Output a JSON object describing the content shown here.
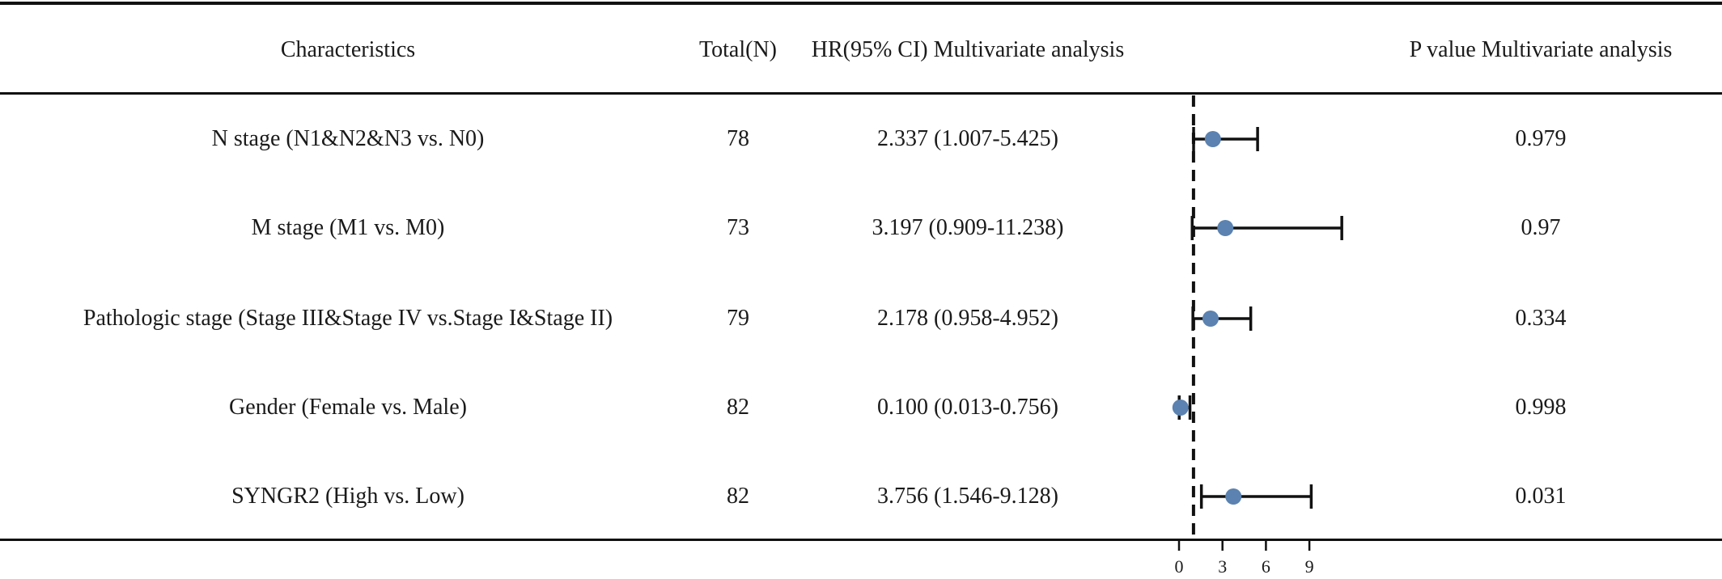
{
  "headers": {
    "characteristics": "Characteristics",
    "total": "Total(N)",
    "hr": "HR(95% CI) Multivariate analysis",
    "pvalue": "P value Multivariate analysis"
  },
  "rows": [
    {
      "label": "N stage (N1&N2&N3 vs. N0)",
      "total": "78",
      "hr_text": "2.337 (1.007-5.425)",
      "p": "0.979"
    },
    {
      "label": "M stage (M1 vs. M0)",
      "total": "73",
      "hr_text": "3.197 (0.909-11.238)",
      "p": "0.97"
    },
    {
      "label": "Pathologic stage (Stage III&Stage IV vs.Stage I&Stage II)",
      "total": "79",
      "hr_text": "2.178 (0.958-4.952)",
      "p": "0.334"
    },
    {
      "label": "Gender (Female vs. Male)",
      "total": "82",
      "hr_text": "0.100 (0.013-0.756)",
      "p": "0.998"
    },
    {
      "label": "SYNGR2 (High vs. Low)",
      "total": "82",
      "hr_text": "3.756 (1.546-9.128)",
      "p": "0.031"
    }
  ],
  "chart_data": {
    "type": "forest",
    "reference_line": 1,
    "reference_style": "dashed",
    "xticks": [
      0,
      3,
      6,
      9
    ],
    "x_range": [
      0,
      11.238
    ],
    "categories": [
      "N stage (N1&N2&N3 vs. N0)",
      "M stage (M1 vs. M0)",
      "Pathologic stage (Stage III&Stage IV vs.Stage I&Stage II)",
      "Gender (Female vs. Male)",
      "SYNGR2 (High vs. Low)"
    ],
    "hr": [
      2.337,
      3.197,
      2.178,
      0.1,
      3.756
    ],
    "ci_lower": [
      1.007,
      0.909,
      0.958,
      0.013,
      1.546
    ],
    "ci_upper": [
      5.425,
      11.238,
      4.952,
      0.756,
      9.128
    ],
    "point_color": "#5b82b0",
    "line_color": "#111111"
  }
}
